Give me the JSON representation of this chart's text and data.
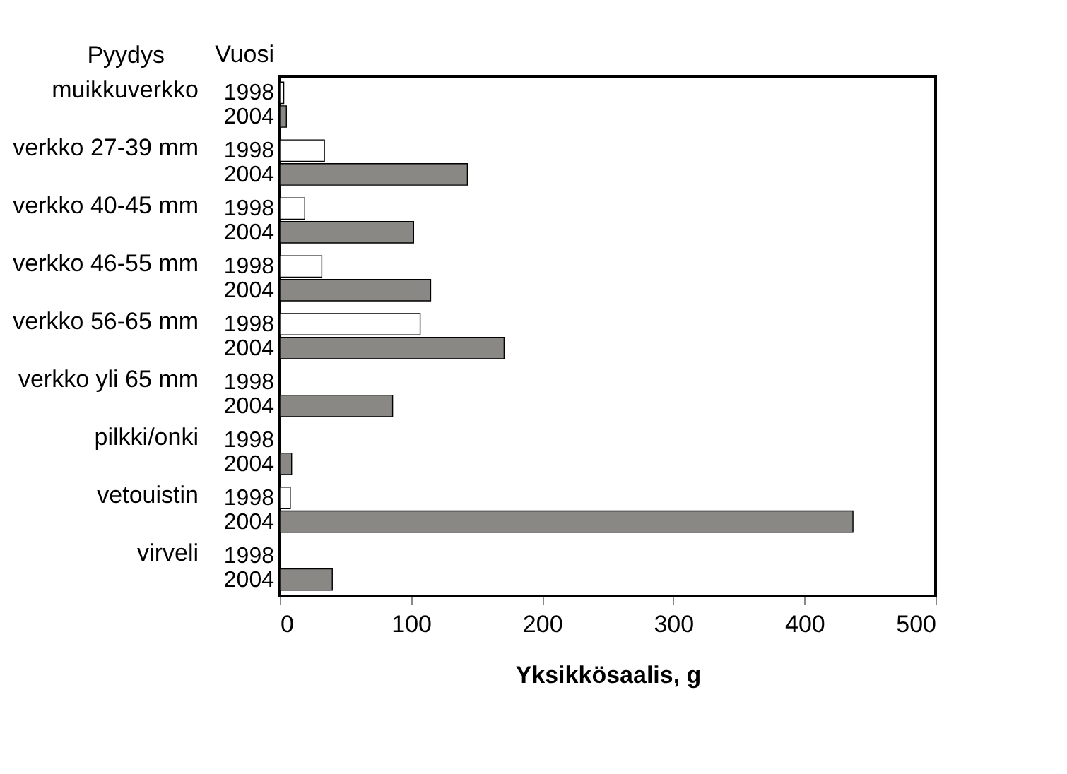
{
  "chart_data": {
    "type": "bar",
    "orientation": "horizontal",
    "xlabel": "Yksikkösaalis, g",
    "ylabel": "Pyydys",
    "legend_title": "Vuosi",
    "categories": [
      "muikkuverkko",
      "verkko 27-39 mm",
      "verkko 40-45 mm",
      "verkko 46-55 mm",
      "verkko 56-65 mm",
      "verkko yli 65 mm",
      "pilkki/onki",
      "vetouistin",
      "virveli"
    ],
    "series": [
      {
        "name": "1998",
        "color": "#ffffff",
        "values": [
          3,
          34,
          19,
          32,
          107,
          null,
          null,
          8,
          null
        ]
      },
      {
        "name": "2004",
        "color": "#8a8884",
        "values": [
          5,
          143,
          102,
          115,
          171,
          86,
          9,
          437,
          40
        ]
      }
    ],
    "xlim": [
      0,
      500
    ],
    "xticks": [
      0,
      100,
      200,
      300,
      400,
      500
    ],
    "grid": false,
    "legend": false
  }
}
